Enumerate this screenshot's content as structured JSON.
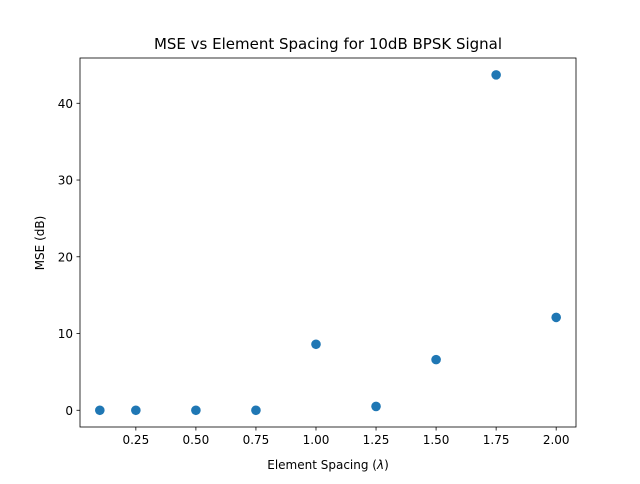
{
  "chart_data": {
    "type": "scatter",
    "title": "MSE vs Element Spacing for 10dB BPSK Signal",
    "xlabel_prefix": "Element Spacing (",
    "xlabel_symbol": "λ",
    "xlabel_suffix": ")",
    "ylabel": "MSE (dB)",
    "x": [
      0.1,
      0.25,
      0.5,
      0.75,
      1.0,
      1.25,
      1.5,
      1.75,
      2.0
    ],
    "y": [
      0.0,
      0.0,
      0.0,
      0.0,
      8.6,
      0.5,
      6.6,
      43.7,
      12.1
    ],
    "xlim": [
      0.0175,
      2.0825
    ],
    "ylim": [
      -2.18,
      45.9
    ],
    "xticks": [
      0.25,
      0.5,
      0.75,
      1.0,
      1.25,
      1.5,
      1.75,
      2.0
    ],
    "xtick_labels": [
      "0.25",
      "0.50",
      "0.75",
      "1.00",
      "1.25",
      "1.50",
      "1.75",
      "2.00"
    ],
    "yticks": [
      0,
      10,
      20,
      30,
      40
    ],
    "ytick_labels": [
      "0",
      "10",
      "20",
      "30",
      "40"
    ],
    "grid": false,
    "marker_color": "#1f77b4"
  }
}
